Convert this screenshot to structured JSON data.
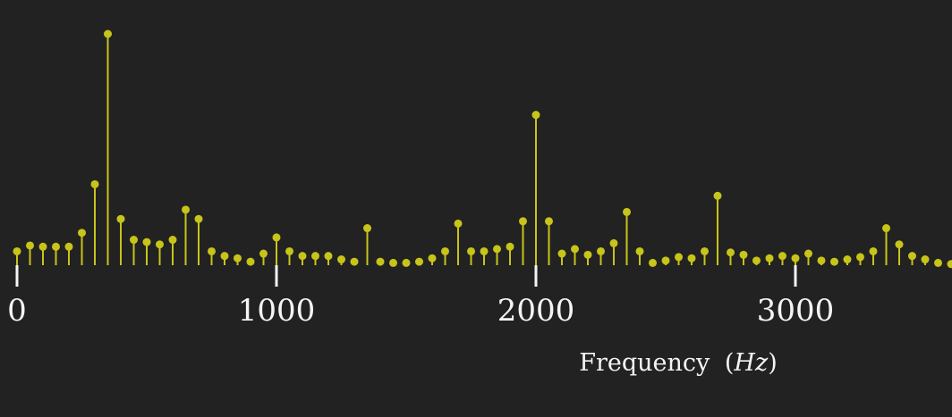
{
  "colors": {
    "background": "#222222",
    "stem": "#c7c41a",
    "text": "#f4f4f4",
    "tick": "#f4f4f4"
  },
  "chart_data": {
    "type": "stem",
    "title": "",
    "xlabel": "Frequency",
    "xlabel_unit": "Hz",
    "xlabel_paren_open": "(",
    "xlabel_paren_close": ")",
    "ylabel": "",
    "xlim": [
      -5,
      3640
    ],
    "ylim": [
      0,
      100
    ],
    "grid": false,
    "legend": "none",
    "xticks": [
      0,
      1000,
      2000,
      3000
    ],
    "xtick_labels": [
      "0",
      "1000",
      "2000",
      "3000"
    ],
    "x": [
      0,
      50,
      100,
      150,
      200,
      250,
      300,
      350,
      400,
      450,
      500,
      550,
      600,
      650,
      700,
      750,
      800,
      850,
      900,
      950,
      1000,
      1050,
      1100,
      1150,
      1200,
      1250,
      1300,
      1350,
      1400,
      1450,
      1500,
      1550,
      1600,
      1650,
      1700,
      1750,
      1800,
      1850,
      1900,
      1950,
      2000,
      2050,
      2100,
      2150,
      2200,
      2250,
      2300,
      2350,
      2400,
      2450,
      2500,
      2550,
      2600,
      2650,
      2700,
      2750,
      2800,
      2850,
      2900,
      2950,
      3000,
      3050,
      3100,
      3150,
      3200,
      3250,
      3300,
      3350,
      3400,
      3450,
      3500,
      3550,
      3600
    ],
    "values": [
      6,
      8.5,
      8,
      8,
      8,
      14,
      35,
      100,
      20,
      11,
      10,
      9,
      11,
      24,
      20,
      6,
      4,
      3,
      1.5,
      5,
      12,
      6,
      4,
      4,
      4,
      2.5,
      1.5,
      16,
      1.5,
      1,
      1,
      1.5,
      3,
      6,
      18,
      6,
      6,
      7,
      8,
      19,
      65,
      19,
      5,
      7,
      4.5,
      6,
      9.5,
      23,
      6,
      1,
      2,
      3.5,
      3,
      6,
      30,
      5.5,
      4.5,
      2,
      3,
      4,
      3,
      5,
      2,
      1.5,
      2.5,
      3.5,
      6,
      16,
      9,
      4,
      2.5,
      1,
      0.5
    ]
  }
}
